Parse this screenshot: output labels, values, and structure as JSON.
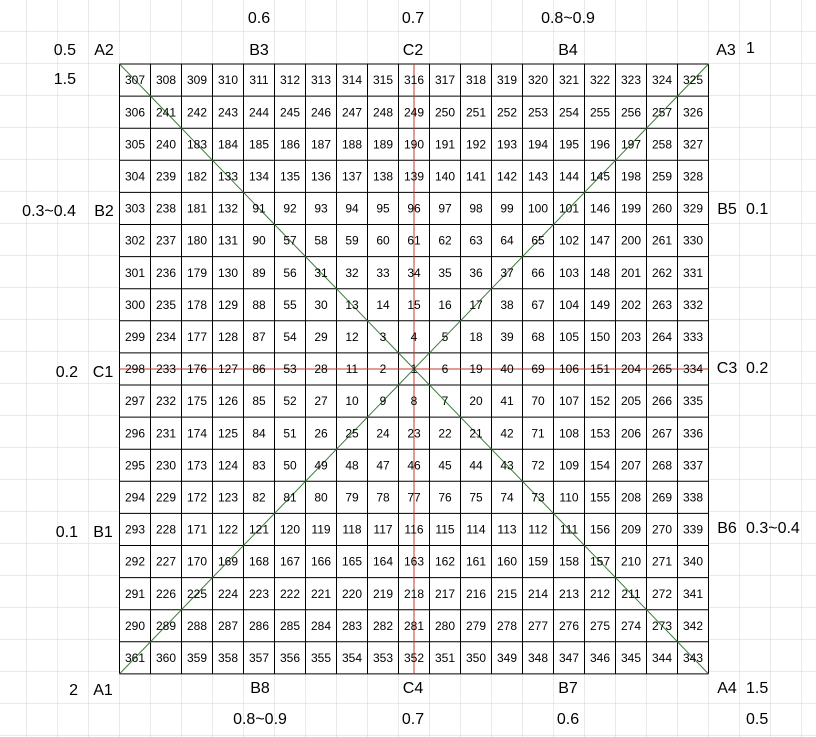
{
  "labels": [
    "0.6",
    "0.7",
    "0.8~0.9",
    "0.5",
    "A2",
    "B3",
    "C2",
    "B4",
    "A3",
    "1",
    "1.5",
    "0.3~0.4",
    "B2",
    "B5",
    "0.1",
    "0.2",
    "C1",
    "C3",
    "0.2",
    "0.1",
    "B1",
    "B6",
    "0.3~0.4",
    "2",
    "A1",
    "B8",
    "C4",
    "B7",
    "A4",
    "1.5",
    "0.8~0.9",
    "0.7",
    "0.6",
    "0.5"
  ],
  "grid": {
    "rows": [
      [
        307,
        308,
        309,
        310,
        311,
        312,
        313,
        314,
        315,
        316,
        317,
        318,
        319,
        320,
        321,
        322,
        323,
        324,
        325
      ],
      [
        306,
        241,
        242,
        243,
        244,
        245,
        246,
        247,
        248,
        249,
        250,
        251,
        252,
        253,
        254,
        255,
        256,
        257,
        326
      ],
      [
        305,
        240,
        183,
        184,
        185,
        186,
        187,
        188,
        189,
        190,
        191,
        192,
        193,
        194,
        195,
        196,
        197,
        258,
        327
      ],
      [
        304,
        239,
        182,
        133,
        134,
        135,
        136,
        137,
        138,
        139,
        140,
        141,
        142,
        143,
        144,
        145,
        198,
        259,
        328
      ],
      [
        303,
        238,
        181,
        132,
        91,
        92,
        93,
        94,
        95,
        96,
        97,
        98,
        99,
        100,
        101,
        146,
        199,
        260,
        329
      ],
      [
        302,
        237,
        180,
        131,
        90,
        57,
        58,
        59,
        60,
        61,
        62,
        63,
        64,
        65,
        102,
        147,
        200,
        261,
        330
      ],
      [
        301,
        236,
        179,
        130,
        89,
        56,
        31,
        32,
        33,
        34,
        35,
        36,
        37,
        66,
        103,
        148,
        201,
        262,
        331
      ],
      [
        300,
        235,
        178,
        129,
        88,
        55,
        30,
        13,
        14,
        15,
        16,
        17,
        38,
        67,
        104,
        149,
        202,
        263,
        332
      ],
      [
        299,
        234,
        177,
        128,
        87,
        54,
        29,
        12,
        3,
        4,
        5,
        18,
        39,
        68,
        105,
        150,
        203,
        264,
        333
      ],
      [
        298,
        233,
        176,
        127,
        86,
        53,
        28,
        11,
        2,
        1,
        6,
        19,
        40,
        69,
        106,
        151,
        204,
        265,
        334
      ],
      [
        297,
        232,
        175,
        126,
        85,
        52,
        27,
        10,
        9,
        8,
        7,
        20,
        41,
        70,
        107,
        152,
        205,
        266,
        335
      ],
      [
        296,
        231,
        174,
        125,
        84,
        51,
        26,
        25,
        24,
        23,
        22,
        21,
        42,
        71,
        108,
        153,
        206,
        267,
        336
      ],
      [
        295,
        230,
        173,
        124,
        83,
        50,
        49,
        48,
        47,
        46,
        45,
        44,
        43,
        72,
        109,
        154,
        207,
        268,
        337
      ],
      [
        294,
        229,
        172,
        123,
        82,
        81,
        80,
        79,
        78,
        77,
        76,
        75,
        74,
        73,
        110,
        155,
        208,
        269,
        338
      ],
      [
        293,
        228,
        171,
        122,
        121,
        120,
        119,
        118,
        117,
        116,
        115,
        114,
        113,
        112,
        111,
        156,
        209,
        270,
        339
      ],
      [
        292,
        227,
        170,
        169,
        168,
        167,
        166,
        165,
        164,
        163,
        162,
        161,
        160,
        159,
        158,
        157,
        210,
        271,
        340
      ],
      [
        291,
        226,
        225,
        224,
        223,
        222,
        221,
        220,
        219,
        218,
        217,
        216,
        215,
        214,
        213,
        212,
        211,
        272,
        341
      ],
      [
        290,
        289,
        288,
        287,
        286,
        285,
        284,
        283,
        282,
        281,
        280,
        279,
        278,
        277,
        276,
        275,
        274,
        273,
        342
      ],
      [
        361,
        360,
        359,
        358,
        357,
        356,
        355,
        354,
        353,
        352,
        351,
        350,
        349,
        348,
        347,
        346,
        345,
        344,
        343
      ]
    ]
  }
}
